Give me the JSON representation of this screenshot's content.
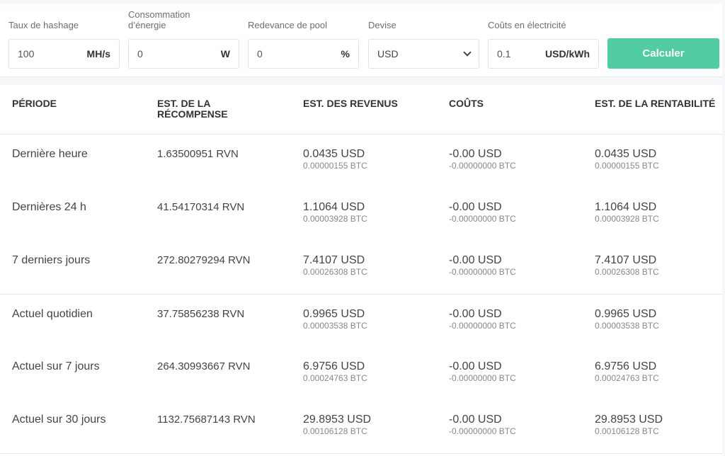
{
  "form": {
    "hashrate": {
      "label": "Taux de hashage",
      "value": "100",
      "unit": "MH/s"
    },
    "power": {
      "label": "Consommation d’énergie",
      "value": "0",
      "unit": "W"
    },
    "pool_fee": {
      "label": "Redevance de pool",
      "value": "0",
      "unit": "%"
    },
    "currency": {
      "label": "Devise",
      "value": "USD"
    },
    "electricity": {
      "label": "Coûts en électricité",
      "value": "0.1",
      "unit": "USD/kWh"
    },
    "calculate_label": "Calculer",
    "accent": "#52cca3"
  },
  "table": {
    "headers": [
      "PÉRIODE",
      "EST. DE LA RÉCOMPENSE",
      "EST. DES REVENUS",
      "COÛTS",
      "EST. DE LA RENTABILITÉ"
    ],
    "rows": [
      {
        "period": "Dernière heure",
        "reward": "1.63500951 RVN",
        "revenue": "0.0435 USD",
        "revenue_btc": "0.00000155 BTC",
        "cost": "-0.00 USD",
        "cost_btc": "-0.00000000 BTC",
        "profit": "0.0435 USD",
        "profit_btc": "0.00000155 BTC"
      },
      {
        "period": "Dernières 24 h",
        "reward": "41.54170314 RVN",
        "revenue": "1.1064 USD",
        "revenue_btc": "0.00003928 BTC",
        "cost": "-0.00 USD",
        "cost_btc": "-0.00000000 BTC",
        "profit": "1.1064 USD",
        "profit_btc": "0.00003928 BTC"
      },
      {
        "period": "7 derniers jours",
        "reward": "272.80279294 RVN",
        "revenue": "7.4107 USD",
        "revenue_btc": "0.00026308 BTC",
        "cost": "-0.00 USD",
        "cost_btc": "-0.00000000 BTC",
        "profit": "7.4107 USD",
        "profit_btc": "0.00026308 BTC"
      },
      {
        "period": "Actuel quotidien",
        "reward": "37.75856238 RVN",
        "revenue": "0.9965 USD",
        "revenue_btc": "0.00003538 BTC",
        "cost": "-0.00 USD",
        "cost_btc": "-0.00000000 BTC",
        "profit": "0.9965 USD",
        "profit_btc": "0.00003538 BTC"
      },
      {
        "period": "Actuel sur 7 jours",
        "reward": "264.30993667 RVN",
        "revenue": "6.9756 USD",
        "revenue_btc": "0.00024763 BTC",
        "cost": "-0.00 USD",
        "cost_btc": "-0.00000000 BTC",
        "profit": "6.9756 USD",
        "profit_btc": "0.00024763 BTC"
      },
      {
        "period": "Actuel sur 30 jours",
        "reward": "1132.75687143 RVN",
        "revenue": "29.8953 USD",
        "revenue_btc": "0.00106128 BTC",
        "cost": "-0.00 USD",
        "cost_btc": "-0.00000000 BTC",
        "profit": "29.8953 USD",
        "profit_btc": "0.00106128 BTC"
      }
    ]
  }
}
